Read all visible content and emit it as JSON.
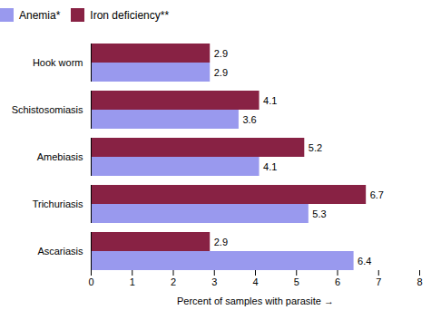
{
  "chart_data": {
    "type": "bar",
    "orientation": "horizontal",
    "categories": [
      "Ascariasis",
      "Trichuriasis",
      "Amebiasis",
      "Schistosomiasis",
      "Hook worm"
    ],
    "series": [
      {
        "name": "Anemia*",
        "color": "#9999ee",
        "values": [
          6.4,
          5.3,
          4.1,
          3.6,
          2.9
        ]
      },
      {
        "name": "Iron deficiency**",
        "color": "#882244",
        "values": [
          2.9,
          6.7,
          5.2,
          4.1,
          2.9
        ]
      }
    ],
    "xlabel": "Percent of samples with parasite",
    "xlim": [
      0,
      8
    ],
    "xticks": [
      0,
      1,
      2,
      3,
      4,
      5,
      6,
      7,
      8
    ],
    "grid": false,
    "legend": "top",
    "data_labels": true
  }
}
